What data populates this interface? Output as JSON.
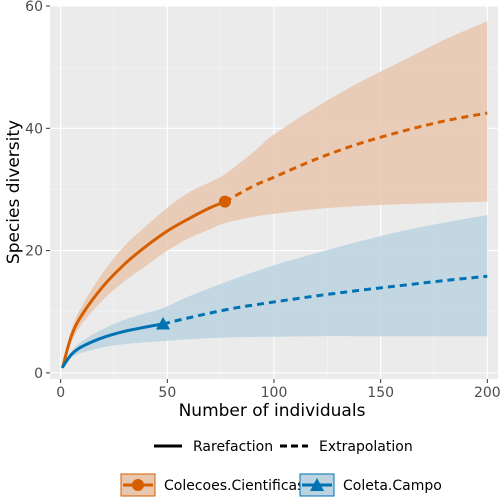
{
  "chart_data": {
    "type": "line",
    "xlabel": "Number of individuals",
    "ylabel": "Species diversity",
    "xlim": [
      -5,
      205
    ],
    "ylim": [
      -1,
      60
    ],
    "x_ticks": [
      0,
      50,
      100,
      150,
      200
    ],
    "y_ticks": [
      0,
      20,
      40,
      60
    ],
    "grid": true,
    "legend_position": "bottom",
    "line_type_legend": [
      {
        "label": "Rarefaction",
        "style": "solid"
      },
      {
        "label": "Extrapolation",
        "style": "dashed"
      }
    ],
    "series": [
      {
        "name": "Colecoes.Cientificas",
        "color": "#D55E00",
        "band_color": "#E8C7AE",
        "marker": "circle",
        "observed": {
          "x": 77,
          "y": 28
        },
        "rarefaction": [
          {
            "x": 1,
            "y": 1,
            "lo": 1,
            "hi": 1
          },
          {
            "x": 5,
            "y": 6,
            "lo": 5,
            "hi": 7
          },
          {
            "x": 10,
            "y": 9.5,
            "lo": 8,
            "hi": 11
          },
          {
            "x": 20,
            "y": 14.2,
            "lo": 12,
            "hi": 16.5
          },
          {
            "x": 30,
            "y": 17.8,
            "lo": 15,
            "hi": 20.8
          },
          {
            "x": 40,
            "y": 20.7,
            "lo": 17.5,
            "hi": 24
          },
          {
            "x": 50,
            "y": 23.2,
            "lo": 20,
            "hi": 27
          },
          {
            "x": 60,
            "y": 25.2,
            "lo": 22,
            "hi": 29.5
          },
          {
            "x": 70,
            "y": 27,
            "lo": 23.5,
            "hi": 31.2
          },
          {
            "x": 77,
            "y": 28,
            "lo": 24.5,
            "hi": 32.5
          }
        ],
        "extrapolation": [
          {
            "x": 77,
            "y": 28,
            "lo": 24.5,
            "hi": 32.5
          },
          {
            "x": 90,
            "y": 30.5,
            "lo": 25.5,
            "hi": 36
          },
          {
            "x": 100,
            "y": 32,
            "lo": 26,
            "hi": 39
          },
          {
            "x": 120,
            "y": 35,
            "lo": 26.8,
            "hi": 43.5
          },
          {
            "x": 140,
            "y": 37.5,
            "lo": 27.3,
            "hi": 47.5
          },
          {
            "x": 160,
            "y": 39.5,
            "lo": 27.6,
            "hi": 51
          },
          {
            "x": 180,
            "y": 41.2,
            "lo": 27.8,
            "hi": 54.5
          },
          {
            "x": 200,
            "y": 42.5,
            "lo": 28,
            "hi": 57.5
          }
        ]
      },
      {
        "name": "Coleta.Campo",
        "color": "#0072B2",
        "band_color": "#BCD3E2",
        "marker": "triangle",
        "observed": {
          "x": 48,
          "y": 8
        },
        "rarefaction": [
          {
            "x": 1,
            "y": 1,
            "lo": 1,
            "hi": 1
          },
          {
            "x": 5,
            "y": 3,
            "lo": 2.5,
            "hi": 3.5
          },
          {
            "x": 10,
            "y": 4.3,
            "lo": 3.3,
            "hi": 5.2
          },
          {
            "x": 20,
            "y": 5.8,
            "lo": 4.2,
            "hi": 7.2
          },
          {
            "x": 30,
            "y": 6.8,
            "lo": 4.7,
            "hi": 8.7
          },
          {
            "x": 40,
            "y": 7.5,
            "lo": 5,
            "hi": 9.8
          },
          {
            "x": 48,
            "y": 8,
            "lo": 5.2,
            "hi": 10.6
          }
        ],
        "extrapolation": [
          {
            "x": 48,
            "y": 8,
            "lo": 5.2,
            "hi": 10.6
          },
          {
            "x": 60,
            "y": 9,
            "lo": 5.5,
            "hi": 12.5
          },
          {
            "x": 80,
            "y": 10.5,
            "lo": 5.8,
            "hi": 15.2
          },
          {
            "x": 100,
            "y": 11.6,
            "lo": 5.9,
            "hi": 17.6
          },
          {
            "x": 120,
            "y": 12.6,
            "lo": 6,
            "hi": 19.6
          },
          {
            "x": 140,
            "y": 13.5,
            "lo": 6,
            "hi": 21.5
          },
          {
            "x": 160,
            "y": 14.3,
            "lo": 6,
            "hi": 23.2
          },
          {
            "x": 180,
            "y": 15.1,
            "lo": 6,
            "hi": 24.6
          },
          {
            "x": 200,
            "y": 15.8,
            "lo": 6,
            "hi": 25.8
          }
        ]
      }
    ]
  }
}
